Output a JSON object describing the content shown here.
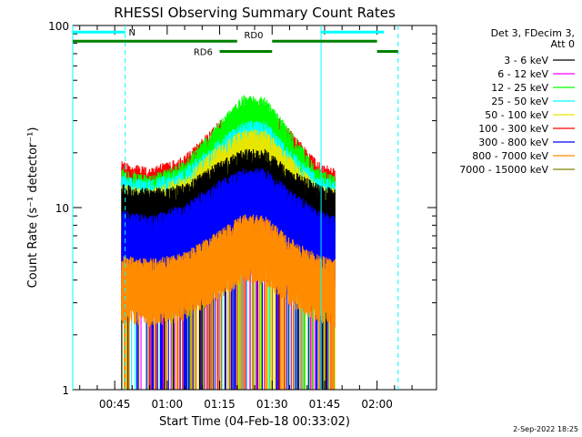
{
  "chart_data": {
    "type": "line",
    "title": "RHESSI Observing Summary Count Rates",
    "xlabel": "Start Time (04-Feb-18 00:33:02)",
    "ylabel": "Count Rate (s⁻¹ detector⁻¹)",
    "yscale": "log",
    "ylim": [
      1,
      100
    ],
    "xlim_minutes": [
      33.0,
      137.0
    ],
    "y_ticks": [
      {
        "value": 1,
        "label": "1"
      },
      {
        "value": 10,
        "label": "10"
      },
      {
        "value": 100,
        "label": "100"
      }
    ],
    "x_ticks": [
      {
        "minutes": 45,
        "label": "00:45"
      },
      {
        "minutes": 60,
        "label": "01:00"
      },
      {
        "minutes": 75,
        "label": "01:15"
      },
      {
        "minutes": 90,
        "label": "01:30"
      },
      {
        "minutes": 105,
        "label": "01:45"
      },
      {
        "minutes": 120,
        "label": "02:00"
      }
    ],
    "legend": {
      "header": [
        "Det 3, FDecim 3,",
        "Att 0"
      ],
      "placement": "right"
    },
    "series": [
      {
        "name": "3 - 6 keV",
        "color": "#000000",
        "points": [
          [
            47,
            9
          ],
          [
            55,
            8.5
          ],
          [
            65,
            9
          ],
          [
            75,
            12
          ],
          [
            82,
            14
          ],
          [
            88,
            14
          ],
          [
            95,
            11
          ],
          [
            103,
            9
          ],
          [
            108,
            8.5
          ]
        ]
      },
      {
        "name": "6 - 12 keV",
        "color": "#ff00ff",
        "points": [
          [
            47,
            4.5
          ],
          [
            55,
            4.2
          ],
          [
            65,
            4.5
          ],
          [
            75,
            7
          ],
          [
            82,
            9
          ],
          [
            88,
            9
          ],
          [
            95,
            6.5
          ],
          [
            103,
            4.5
          ],
          [
            108,
            4.3
          ]
        ]
      },
      {
        "name": "12 - 25 keV",
        "color": "#00ff00",
        "points": [
          [
            47,
            11
          ],
          [
            55,
            10
          ],
          [
            65,
            12
          ],
          [
            75,
            20
          ],
          [
            82,
            28
          ],
          [
            88,
            27
          ],
          [
            95,
            18
          ],
          [
            103,
            11
          ],
          [
            108,
            10
          ]
        ]
      },
      {
        "name": "25 - 50 keV",
        "color": "#00ffff",
        "points": [
          [
            47,
            10
          ],
          [
            55,
            9.5
          ],
          [
            65,
            11
          ],
          [
            75,
            16
          ],
          [
            82,
            20
          ],
          [
            88,
            20
          ],
          [
            95,
            14
          ],
          [
            103,
            10
          ],
          [
            108,
            9.5
          ]
        ]
      },
      {
        "name": "50 - 100 keV",
        "color": "#e6e600",
        "points": [
          [
            47,
            9
          ],
          [
            55,
            8.5
          ],
          [
            65,
            10
          ],
          [
            75,
            15
          ],
          [
            82,
            18
          ],
          [
            88,
            18
          ],
          [
            95,
            13
          ],
          [
            103,
            9
          ],
          [
            108,
            8.5
          ]
        ]
      },
      {
        "name": "100 - 300 keV",
        "color": "#ff0000",
        "points": [
          [
            47,
            12
          ],
          [
            55,
            11
          ],
          [
            65,
            13
          ],
          [
            75,
            20
          ],
          [
            82,
            25
          ],
          [
            88,
            25
          ],
          [
            95,
            18
          ],
          [
            103,
            12
          ],
          [
            108,
            11
          ]
        ]
      },
      {
        "name": "300 - 800 keV",
        "color": "#0000ff",
        "points": [
          [
            47,
            6.5
          ],
          [
            55,
            6
          ],
          [
            65,
            7
          ],
          [
            75,
            9.5
          ],
          [
            82,
            11
          ],
          [
            88,
            11
          ],
          [
            95,
            8.5
          ],
          [
            103,
            6.5
          ],
          [
            108,
            6
          ]
        ]
      },
      {
        "name": "800 - 7000 keV",
        "color": "#ff8c00",
        "points": [
          [
            47,
            3.7
          ],
          [
            55,
            3.5
          ],
          [
            65,
            3.8
          ],
          [
            75,
            5
          ],
          [
            82,
            6.2
          ],
          [
            88,
            6
          ],
          [
            95,
            4.6
          ],
          [
            103,
            3.7
          ],
          [
            108,
            3.5
          ]
        ]
      },
      {
        "name": "7000 - 15000 keV",
        "color": "#808000",
        "points": []
      }
    ],
    "annotations": [
      {
        "text": "N",
        "color": "#00ffff",
        "ranges": [
          [
            33,
            48
          ],
          [
            104,
            122
          ]
        ],
        "y": 92
      },
      {
        "text": "RD0",
        "color": "#008000",
        "ranges": [
          [
            33,
            80
          ],
          [
            90,
            120
          ]
        ],
        "y": 82
      },
      {
        "text": "RD6",
        "color": "#008000",
        "ranges": [
          [
            75,
            90
          ],
          [
            120,
            126
          ]
        ],
        "y": 72
      }
    ],
    "vertical_markers": [
      {
        "minutes": 33.0,
        "color": "#00ffff",
        "style": "solid"
      },
      {
        "minutes": 48.0,
        "color": "#00ffff",
        "style": "dashed"
      },
      {
        "minutes": 104.0,
        "color": "#00ffff",
        "style": "solid"
      },
      {
        "minutes": 126.0,
        "color": "#00ffff",
        "style": "dashed"
      }
    ]
  },
  "footer": {
    "timestamp": "2-Sep-2022 18:25"
  }
}
